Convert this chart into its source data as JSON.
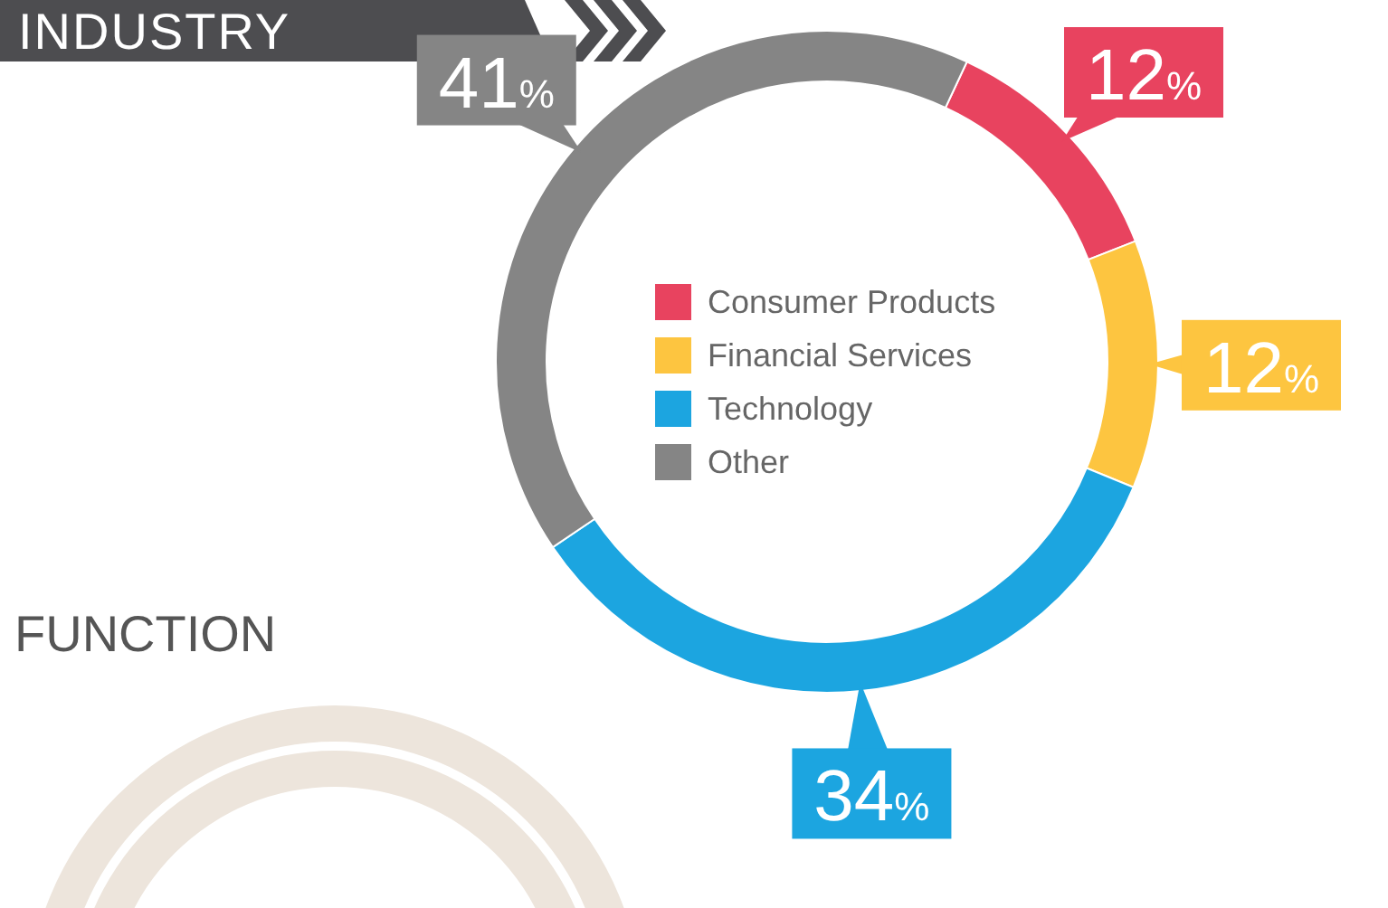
{
  "chart_data": {
    "type": "donut",
    "title": "INDUSTRY",
    "categories": [
      "Consumer Products",
      "Financial Services",
      "Technology",
      "Other"
    ],
    "values": [
      12,
      12,
      34,
      41
    ],
    "colors": [
      "#e8435f",
      "#fdc540",
      "#1ca5e0",
      "#858585"
    ],
    "value_labels": [
      "12%",
      "12%",
      "34%",
      "41%"
    ],
    "legend": "center",
    "annotations": [
      "FUNCTION"
    ]
  }
}
